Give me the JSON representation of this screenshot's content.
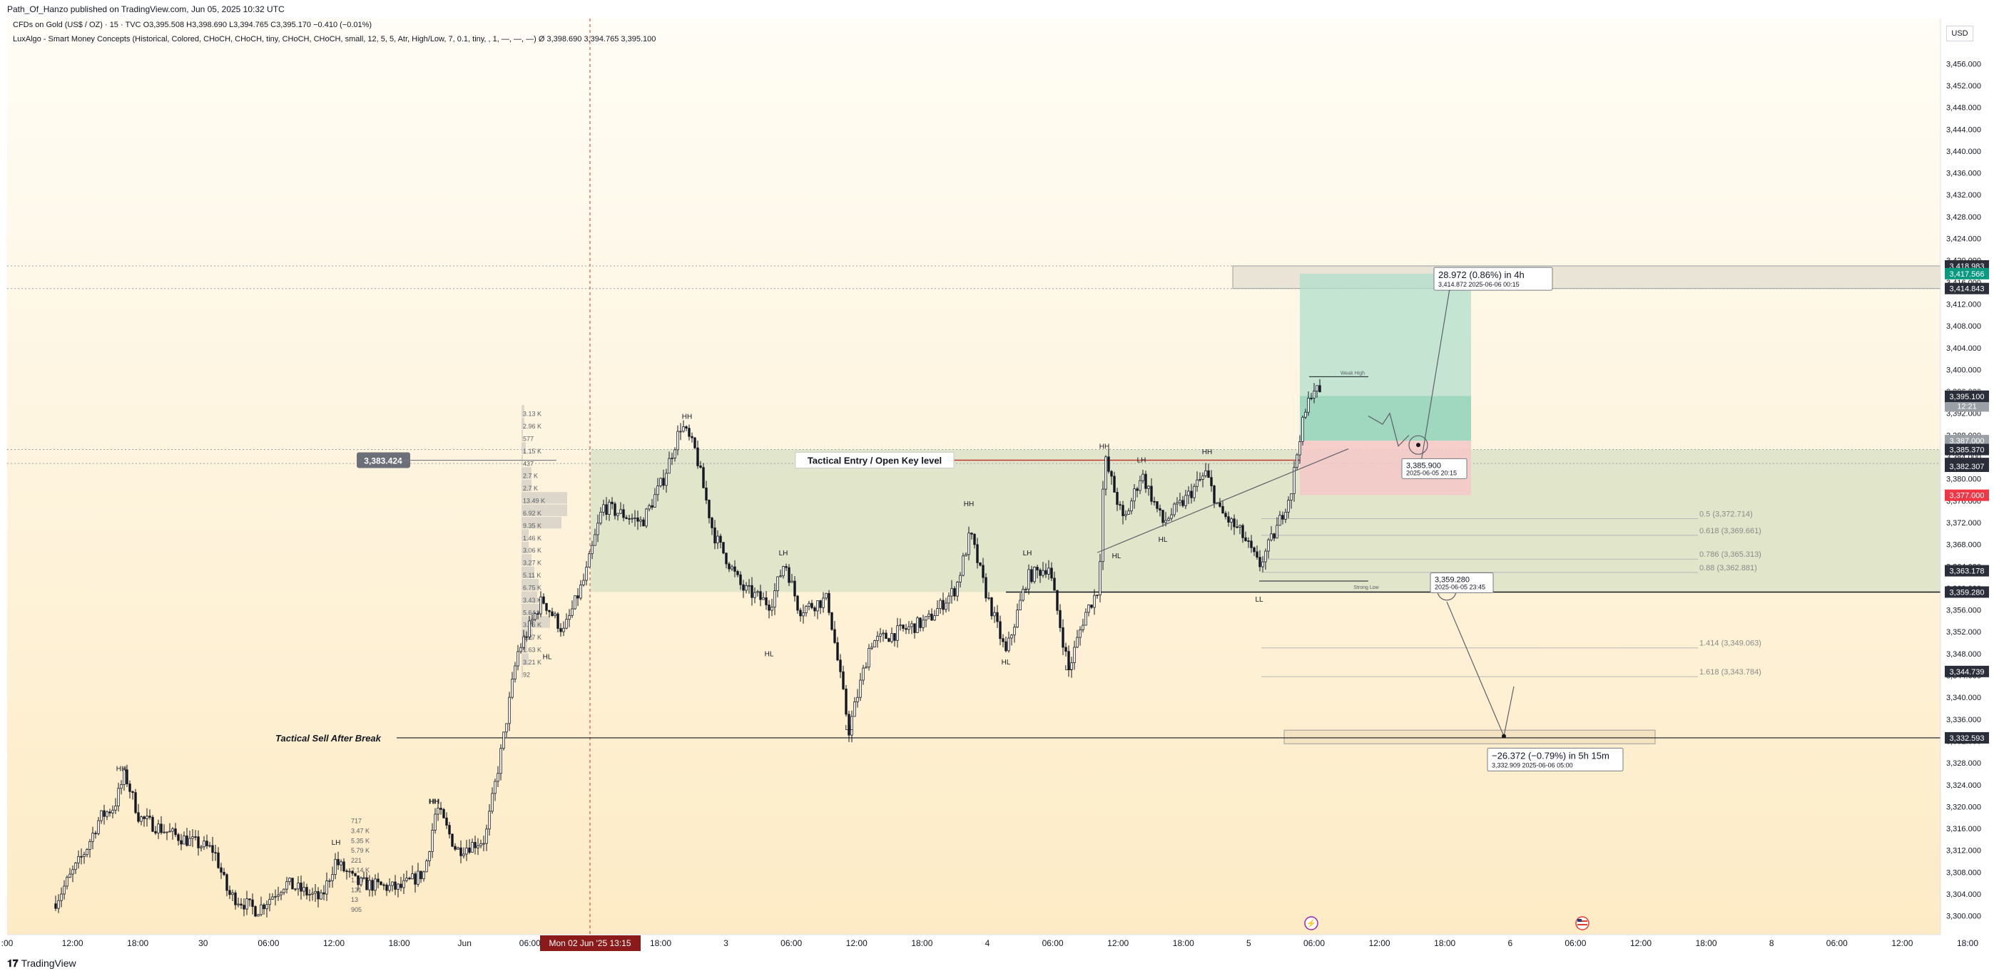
{
  "header": {
    "publisher": "Path_Of_Hanzo published on TradingView.com, Jun 05, 2025 10:32 UTC",
    "symbol": "CFDs on Gold (US$ / OZ) · 15 · TVC",
    "ohlc": "O3,395.508  H3,398.690  L3,394.765  C3,395.170  −0.410 (−0.01%)",
    "indicator": "LuxAlgo - Smart Money Concepts (Historical, Colored, CHoCH, CHoCH, tiny, CHoCH, CHoCH, small, 12, 5, 5, Atr, High/Low, 7, 0.1, tiny, , 1, —, —, —)  Ø  3,398.690  3,394.765  3,395.100",
    "currency": "USD"
  },
  "footer": {
    "brand": "TradingView",
    "logo": "tv-logo"
  },
  "colors": {
    "up": "#089981",
    "down": "#f23645",
    "wick": "#131722",
    "bg_top": "#fffcf2",
    "bg_bottom": "#fdebc5",
    "zone": "#d9e1c6",
    "tp": "#b2dfcc",
    "sl": "#f5c8c8"
  },
  "chart_data": {
    "type": "candlestick",
    "symbol": "XAUUSD",
    "timeframe": "15",
    "ylim": [
      3298.0,
      3458.0
    ],
    "y_ticks": [
      3300,
      3304,
      3308,
      3312,
      3316,
      3320,
      3324,
      3328,
      3332,
      3336,
      3340,
      3344,
      3348,
      3352,
      3356,
      3360,
      3364,
      3368,
      3372,
      3376,
      3380,
      3384,
      3388,
      3392,
      3396,
      3400,
      3404,
      3408,
      3412,
      3416,
      3420,
      3424,
      3428,
      3432,
      3436,
      3440,
      3444,
      3448,
      3452,
      3456
    ],
    "x_ticks": [
      ":00",
      "12:00",
      "18:00",
      "30",
      "06:00",
      "12:00",
      "18:00",
      "Jun",
      "06:00",
      "12:00",
      "18:00",
      "3",
      "06:00",
      "12:00",
      "18:00",
      "4",
      "06:00",
      "12:00",
      "18:00",
      "5",
      "06:00",
      "12:00",
      "18:00",
      "6",
      "06:00",
      "12:00",
      "18:00",
      "8",
      "06:00",
      "12:00",
      "18:00"
    ],
    "x_range_label": "Mon 02 Jun '25   13:15",
    "price_labels": [
      {
        "value": 3418.983,
        "text": "3,418.983",
        "kind": "dark"
      },
      {
        "value": 3417.566,
        "text": "3,417.566",
        "kind": "up"
      },
      {
        "value": 3414.843,
        "text": "3,414.843",
        "kind": "dark"
      },
      {
        "value": 3395.17,
        "text": "3,395.170",
        "time": "12:21",
        "kind": "grey"
      },
      {
        "value": 3395.1,
        "text": "3,395.100",
        "kind": "dark"
      },
      {
        "value": 3387.0,
        "text": "3,387.000",
        "kind": "grey"
      },
      {
        "value": 3385.37,
        "text": "3,385.370",
        "kind": "dark"
      },
      {
        "value": 3382.818,
        "text": "3,382.818",
        "kind": "dark"
      },
      {
        "value": 3382.307,
        "text": "3,382.307",
        "kind": "dark"
      },
      {
        "value": 3377.0,
        "text": "3,377.000",
        "kind": "down"
      },
      {
        "value": 3363.178,
        "text": "3,363.178",
        "kind": "dark"
      },
      {
        "value": 3359.28,
        "text": "3,359.280",
        "kind": "dark"
      },
      {
        "value": 3344.739,
        "text": "3,344.739",
        "kind": "dark"
      },
      {
        "value": 3332.593,
        "text": "3,332.593",
        "kind": "dark"
      }
    ],
    "left_price_label": {
      "value": 3383.424,
      "text": "3,383.424"
    },
    "horizontal_lines": [
      {
        "value": 3383.424,
        "label": "Tactical Entry / Open Key level"
      },
      {
        "value": 3332.593,
        "label": "Tactical  Sell After Break"
      },
      {
        "value": 3359.28,
        "label": ""
      }
    ],
    "structure_labels": [
      {
        "text": "HH",
        "x": 170,
        "y": 3326.5
      },
      {
        "text": "HH",
        "x": 609,
        "y": 3320.5
      },
      {
        "text": "HL",
        "x": 767,
        "y": 3347.0
      },
      {
        "text": "HH",
        "x": 963,
        "y": 3391.0
      },
      {
        "text": "LH",
        "x": 1098,
        "y": 3366.0
      },
      {
        "text": "HL",
        "x": 1078,
        "y": 3347.5
      },
      {
        "text": "LL",
        "x": 1190,
        "y": 3334.0
      },
      {
        "text": "HH",
        "x": 1358,
        "y": 3375.0
      },
      {
        "text": "LH",
        "x": 1440,
        "y": 3366.0
      },
      {
        "text": "HL",
        "x": 1410,
        "y": 3346.0
      },
      {
        "text": "LL",
        "x": 1498,
        "y": 3345.0
      },
      {
        "text": "HH",
        "x": 1548,
        "y": 3385.5
      },
      {
        "text": "LH",
        "x": 1600,
        "y": 3383.0
      },
      {
        "text": "HL",
        "x": 1565,
        "y": 3365.5
      },
      {
        "text": "HL",
        "x": 1630,
        "y": 3368.5
      },
      {
        "text": "HH",
        "x": 1692,
        "y": 3384.5
      },
      {
        "text": "LL",
        "x": 1765,
        "y": 3357.5
      },
      {
        "text": "LH",
        "x": 471,
        "y": 3313.0
      },
      {
        "text": "HH",
        "x": 608,
        "y": 3320.5
      }
    ],
    "fib_levels": [
      {
        "ratio": "0.5",
        "value": 3372.714
      },
      {
        "ratio": "0.618",
        "value": 3369.661
      },
      {
        "ratio": "0.786",
        "value": 3365.313
      },
      {
        "ratio": "0.88",
        "value": 3362.881
      },
      {
        "ratio": "1.414",
        "value": 3349.063
      },
      {
        "ratio": "1.618",
        "value": 3343.784
      }
    ],
    "long_position": {
      "entry": 3387.0,
      "target": 3417.566,
      "stop": 3377.0
    },
    "zones": [
      {
        "from": 3359.28,
        "to": 3385.37
      },
      {
        "from": 3414.843,
        "to": 3418.983
      },
      {
        "from": 3331.5,
        "to": 3334.0
      }
    ],
    "callouts": [
      {
        "line1": "28.972 (0.86%) in 4h",
        "line2": "3,414.872    2025-06-06  00:15"
      },
      {
        "line1": "3,385.900",
        "line2": "2025-06-05 20:15"
      },
      {
        "line1": "3,359.280",
        "line2": "2025-06-05 23:45"
      },
      {
        "line1": "−26.372 (−0.79%) in 5h 15m",
        "line2": "3,332.909    2025-06-06  05:00"
      }
    ],
    "small_annotations": [
      "Weak High",
      "Strong Low"
    ],
    "volume_profile_labels": [
      "3.13 K",
      "2.96 K",
      "577",
      "1.15 K",
      "437",
      "2.7 K",
      "2.7 K",
      "13.49 K",
      "6.92 K",
      "9.35 K",
      "1.46 K",
      "3.06 K",
      "3.27 K",
      "5.11 K",
      "6.75 K",
      "3.43 K",
      "5.64 K",
      "3.76 K",
      "1.27 K",
      "1.63 K",
      "3.21 K",
      "92"
    ],
    "volume_profile_labels_2": [
      "717",
      "3.47 K",
      "5.35 K",
      "5.79 K",
      "221",
      "2.14 K",
      "1.78 K",
      "131",
      "13",
      "905"
    ],
    "event_icons": [
      "lightning-icon",
      "us-flag-icon"
    ]
  }
}
